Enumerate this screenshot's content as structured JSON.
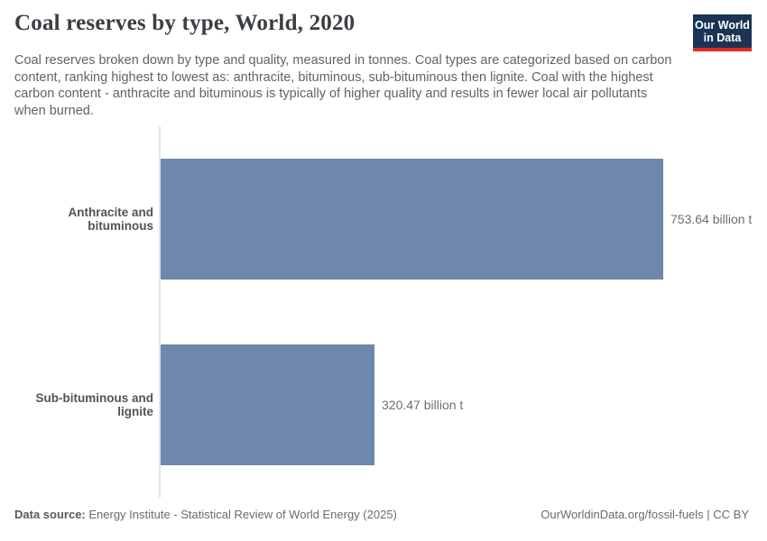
{
  "header": {
    "title": "Coal reserves by type, World, 2020",
    "subtitle": "Coal reserves broken down by type and quality, measured in tonnes. Coal types are categorized based on carbon content, ranking highest to lowest as: anthracite, bituminous, sub-bituminous then lignite. Coal with the highest carbon content - anthracite and bituminous is typically of higher quality and results in fewer local air pollutants when burned.",
    "logo": {
      "line1": "Our World",
      "line2": "in Data"
    }
  },
  "chart_data": {
    "type": "bar",
    "orientation": "horizontal",
    "title": "Coal reserves by type, World, 2020",
    "categories": [
      "Anthracite and bituminous",
      "Sub-bituminous and lignite"
    ],
    "values": [
      753.64,
      320.47
    ],
    "value_labels": [
      "753.64 billion t",
      "320.47 billion t"
    ],
    "unit": "billion t",
    "xlim": [
      0,
      753.64
    ],
    "grid": false,
    "legend": "none",
    "bar_color": "#6d87ad"
  },
  "footer": {
    "datasource_label": "Data source:",
    "datasource_text": " Energy Institute - Statistical Review of World Energy (2025)",
    "credit": "OurWorldinData.org/fossil-fuels | CC BY"
  },
  "colors": {
    "bar": "#6d87ad",
    "axis": "#e4e4e4",
    "logo_navy": "#1a3455",
    "logo_red": "#e02b23",
    "title_text": "#3a3f44",
    "subtitle_text": "#636363"
  }
}
